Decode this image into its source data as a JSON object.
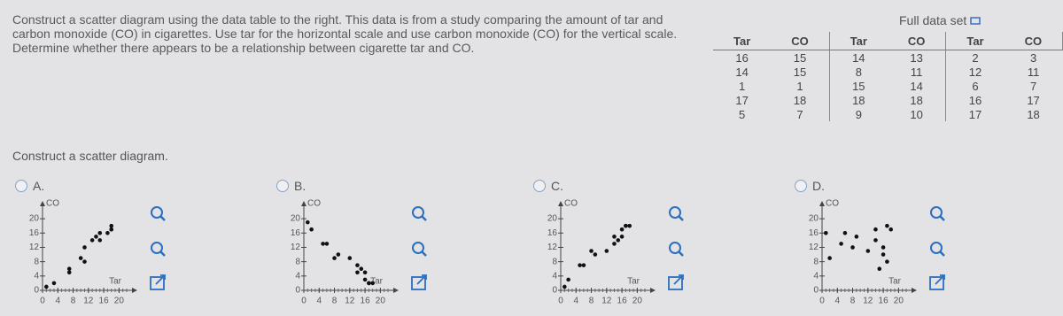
{
  "question": "Construct a scatter diagram using the data table to the right. This data is from a study comparing the amount of tar and carbon monoxide (CO) in cigarettes. Use tar for the horizontal scale and use carbon monoxide (CO) for the vertical scale. Determine whether there appears to be a relationship between cigarette tar and CO.",
  "table": {
    "header": [
      "Tar",
      "CO",
      "Tar",
      "CO",
      "Tar",
      "CO"
    ],
    "rows": [
      [
        16,
        15,
        14,
        13,
        2,
        3
      ],
      [
        14,
        15,
        8,
        11,
        12,
        11
      ],
      [
        1,
        1,
        15,
        14,
        6,
        7
      ],
      [
        17,
        18,
        18,
        18,
        16,
        17
      ],
      [
        5,
        7,
        9,
        10,
        17,
        18
      ]
    ]
  },
  "full_data_set": "Full data set",
  "prompt": "Construct a scatter diagram.",
  "options": [
    {
      "label": "A.",
      "chart_data": {
        "type": "scatter",
        "x_label": "Tar",
        "y_label": "CO",
        "color": "#111111",
        "x": [
          15,
          15,
          1,
          18,
          7,
          13,
          11,
          14,
          18,
          10,
          3,
          11,
          7,
          17,
          18
        ],
        "y": [
          16,
          14,
          1,
          17,
          5,
          14,
          8,
          15,
          18,
          9,
          2,
          12,
          6,
          16,
          17
        ],
        "xlim": [
          0,
          22
        ],
        "ylim": [
          0,
          22
        ],
        "xticks": [
          0,
          4,
          8,
          12,
          16,
          20
        ],
        "yticks": [
          0,
          4,
          8,
          12,
          16,
          20
        ]
      }
    },
    {
      "label": "B.",
      "chart_data": {
        "type": "scatter",
        "x_label": "Tar",
        "y_label": "CO",
        "color": "#111111",
        "x": [
          16,
          14,
          1,
          17,
          5,
          14,
          8,
          15,
          18,
          9,
          2,
          12,
          6,
          16,
          17
        ],
        "y": [
          5,
          5,
          19,
          2,
          13,
          7,
          9,
          6,
          2,
          10,
          17,
          9,
          13,
          3,
          2
        ],
        "xlim": [
          0,
          22
        ],
        "ylim": [
          0,
          22
        ],
        "xticks": [
          0,
          4,
          8,
          12,
          16,
          20
        ],
        "yticks": [
          0,
          4,
          8,
          12,
          16,
          20
        ]
      }
    },
    {
      "label": "C.",
      "chart_data": {
        "type": "scatter",
        "x_label": "Tar",
        "y_label": "CO",
        "color": "#111111",
        "x": [
          16,
          14,
          1,
          17,
          5,
          14,
          8,
          15,
          18,
          9,
          2,
          12,
          6,
          16,
          17
        ],
        "y": [
          15,
          15,
          1,
          18,
          7,
          13,
          11,
          14,
          18,
          10,
          3,
          11,
          7,
          17,
          18
        ],
        "xlim": [
          0,
          22
        ],
        "ylim": [
          0,
          22
        ],
        "xticks": [
          0,
          4,
          8,
          12,
          16,
          20
        ],
        "yticks": [
          0,
          4,
          8,
          12,
          16,
          20
        ]
      }
    },
    {
      "label": "D.",
      "chart_data": {
        "type": "scatter",
        "x_label": "Tar",
        "y_label": "CO",
        "color": "#111111",
        "x": [
          16,
          14,
          1,
          17,
          5,
          14,
          8,
          15,
          18,
          9,
          2,
          12,
          6,
          16,
          17
        ],
        "y": [
          10,
          17,
          16,
          8,
          13,
          14,
          12,
          6,
          17,
          15,
          9,
          11,
          16,
          12,
          18
        ],
        "xlim": [
          0,
          22
        ],
        "ylim": [
          0,
          22
        ],
        "xticks": [
          0,
          4,
          8,
          12,
          16,
          20
        ],
        "yticks": [
          0,
          4,
          8,
          12,
          16,
          20
        ]
      }
    }
  ]
}
